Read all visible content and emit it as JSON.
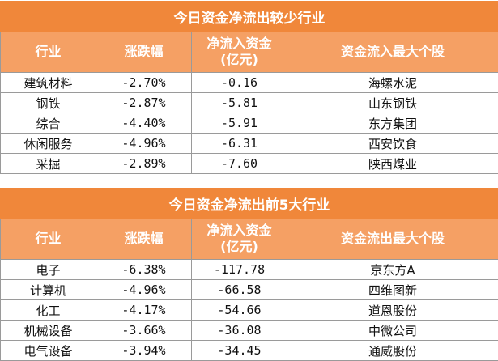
{
  "table_inflow_least": {
    "title": "今日资金净流出较少行业",
    "headers": [
      "行业",
      "涨跌幅",
      "净流入资金(亿元)",
      "资金流入最大个股"
    ],
    "header_lines": {
      "col3_line1": "净流入资金",
      "col3_line2": "(亿元)"
    },
    "rows": [
      [
        "建筑材料",
        "-2.70%",
        "-0.16",
        "海螺水泥"
      ],
      [
        "钢铁",
        "-2.87%",
        "-5.81",
        "山东钢铁"
      ],
      [
        "综合",
        "-4.40%",
        "-5.91",
        "东方集团"
      ],
      [
        "休闲服务",
        "-4.96%",
        "-6.31",
        "西安饮食"
      ],
      [
        "采掘",
        "-2.89%",
        "-7.60",
        "陕西煤业"
      ]
    ]
  },
  "table_outflow_top5": {
    "title": "今日资金净流出前5大行业",
    "headers": [
      "行业",
      "涨跌幅",
      "净流入资金(亿元)",
      "资金流出最大个股"
    ],
    "header_lines": {
      "col3_line1": "净流入资金",
      "col3_line2": "(亿元)"
    },
    "rows": [
      [
        "电子",
        "-6.38%",
        "-117.78",
        "京东方A"
      ],
      [
        "计算机",
        "-4.96%",
        "-66.58",
        "四维图新"
      ],
      [
        "化工",
        "-4.17%",
        "-54.66",
        "道恩股份"
      ],
      [
        "机械设备",
        "-3.66%",
        "-36.08",
        "中微公司"
      ],
      [
        "电气设备",
        "-3.94%",
        "-34.45",
        "通威股份"
      ]
    ]
  }
}
